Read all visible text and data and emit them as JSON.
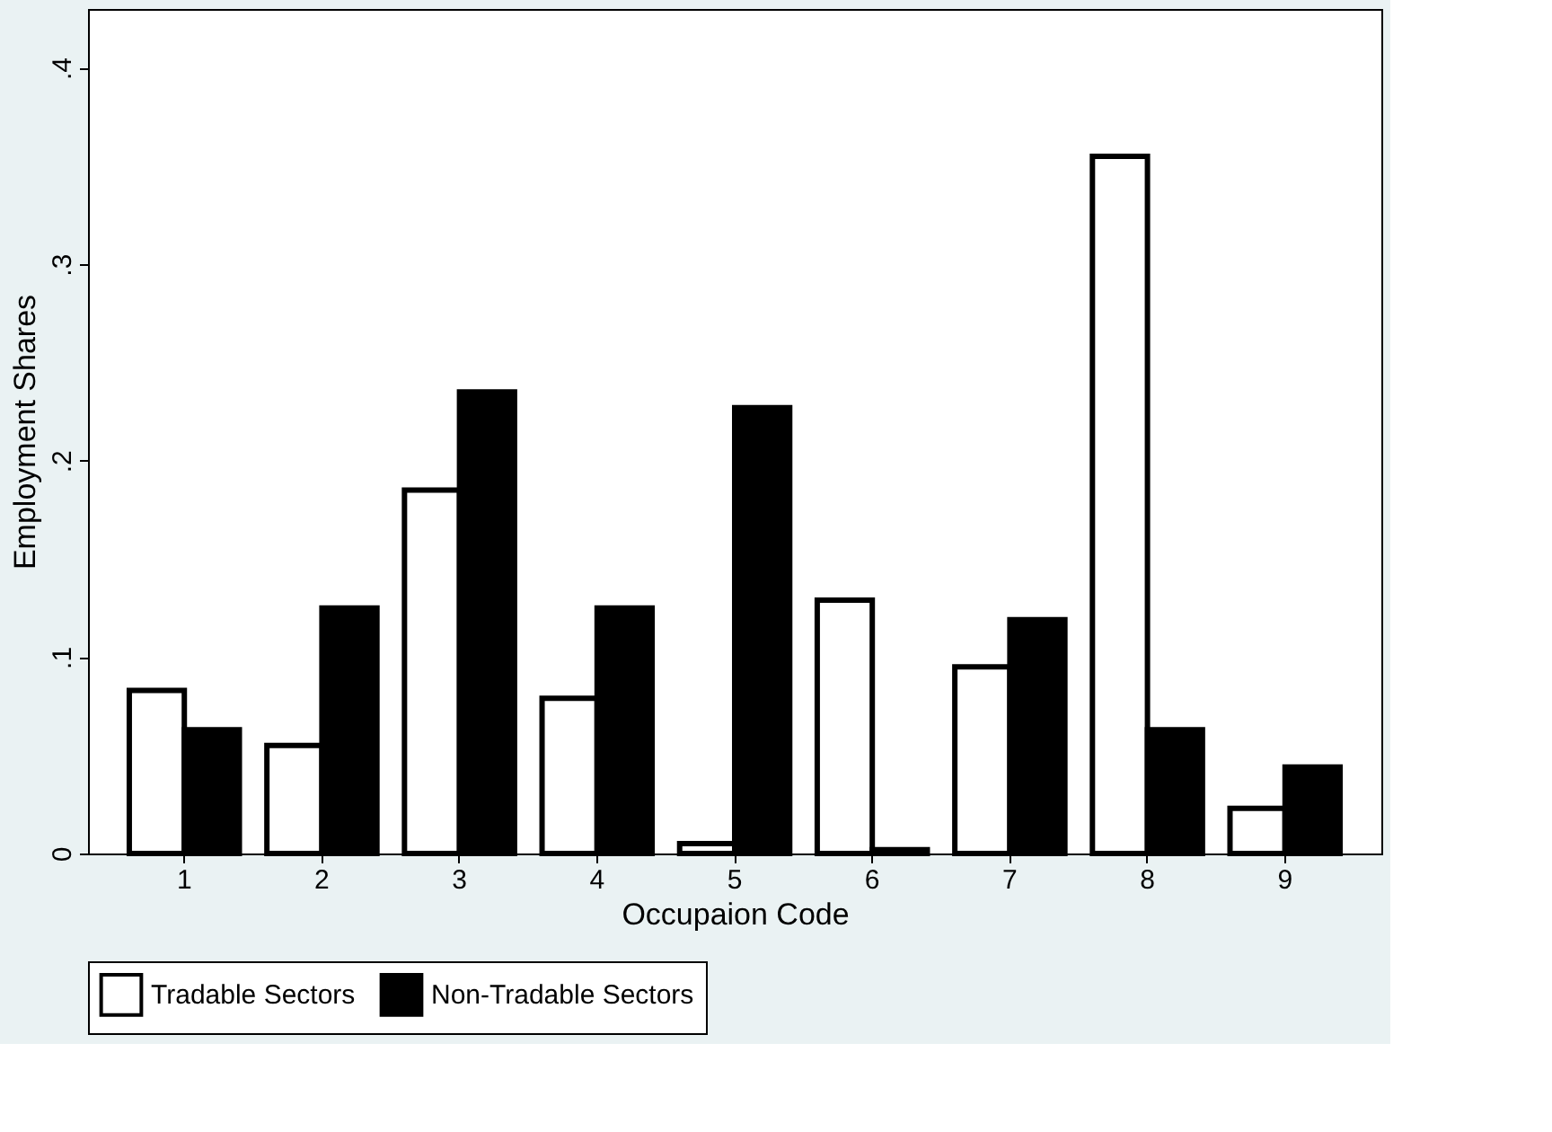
{
  "chart_data": {
    "type": "bar",
    "xlabel": "Occupaion Code",
    "ylabel": "Employment Shares",
    "categories": [
      "1",
      "2",
      "3",
      "4",
      "5",
      "6",
      "7",
      "8",
      "9"
    ],
    "series": [
      {
        "name": "Tradable Sectors",
        "color": "#ffffff",
        "values": [
          0.083,
          0.055,
          0.185,
          0.079,
          0.005,
          0.129,
          0.095,
          0.355,
          0.023
        ]
      },
      {
        "name": "Non-Tradable Sectors",
        "color": "#000000",
        "values": [
          0.063,
          0.125,
          0.235,
          0.125,
          0.227,
          0.002,
          0.119,
          0.063,
          0.044
        ]
      }
    ],
    "ylim": [
      0,
      0.43
    ],
    "yticks": [
      0,
      {
        "value": 0.1,
        "label": ".1"
      },
      {
        "value": 0.2,
        "label": ".2"
      },
      {
        "value": 0.3,
        "label": ".3"
      },
      {
        "value": 0.4,
        "label": ".4"
      }
    ],
    "grid": false,
    "legend": "bottom"
  }
}
